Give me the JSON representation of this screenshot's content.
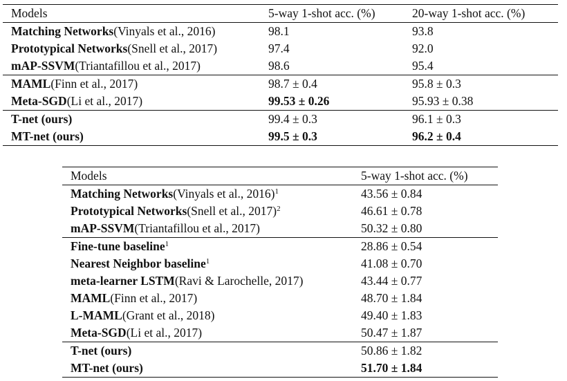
{
  "table1": {
    "headers": [
      "Models",
      "5-way 1-shot acc. (%)",
      "20-way 1-shot acc. (%)"
    ],
    "rows": [
      {
        "name": "Matching Networks",
        "cite": "(Vinyals et al., 2016)",
        "v1": "98.1",
        "v2": "93.8"
      },
      {
        "name": "Prototypical Networks",
        "cite": "(Snell et al., 2017)",
        "v1": "97.4",
        "v2": "92.0"
      },
      {
        "name": "mAP-SSVM",
        "cite": "(Triantafillou et al., 2017)",
        "v1": "98.6",
        "v2": "95.4"
      },
      {
        "name": "MAML",
        "cite": "(Finn et al., 2017)",
        "v1": "98.7 ± 0.4",
        "v2": "95.8 ± 0.3"
      },
      {
        "name": "Meta-SGD",
        "cite": "(Li et al., 2017)",
        "v1": "99.53 ± 0.26",
        "v2": "95.93 ± 0.38"
      },
      {
        "name": "T-net (ours)",
        "cite": "",
        "v1": "99.4 ± 0.3",
        "v2": "96.1 ± 0.3"
      },
      {
        "name": "MT-net (ours)",
        "cite": "",
        "v1": "99.5 ± 0.3",
        "v2": "96.2 ± 0.4"
      }
    ]
  },
  "table2": {
    "headers": [
      "Models",
      "5-way 1-shot acc. (%)"
    ],
    "rows": [
      {
        "name": "Matching Networks",
        "cite": "(Vinyals et al., 2016)",
        "sup": "1",
        "v1": "43.56 ± 0.84"
      },
      {
        "name": "Prototypical Networks",
        "cite": "(Snell et al., 2017)",
        "sup": "2",
        "v1": "46.61 ± 0.78"
      },
      {
        "name": "mAP-SSVM",
        "cite": "(Triantafillou et al., 2017)",
        "sup": "",
        "v1": "50.32 ± 0.80"
      },
      {
        "name": "Fine-tune baseline",
        "cite": "",
        "sup": "1",
        "v1": "28.86 ± 0.54"
      },
      {
        "name": "Nearest Neighbor baseline",
        "cite": "",
        "sup": "1",
        "v1": "41.08 ± 0.70"
      },
      {
        "name": "meta-learner LSTM",
        "cite": "(Ravi & Larochelle, 2017)",
        "sup": "",
        "v1": "43.44 ± 0.77"
      },
      {
        "name": "MAML",
        "cite": "(Finn et al., 2017)",
        "sup": "",
        "v1": "48.70 ± 1.84"
      },
      {
        "name": "L-MAML",
        "cite": "(Grant et al., 2018)",
        "sup": "",
        "v1": "49.40 ± 1.83"
      },
      {
        "name": "Meta-SGD",
        "cite": "(Li et al., 2017)",
        "sup": "",
        "v1": "50.47 ± 1.87"
      },
      {
        "name": "T-net (ours)",
        "cite": "",
        "sup": "",
        "v1": "50.86 ± 1.82"
      },
      {
        "name": "MT-net (ours)",
        "cite": "",
        "sup": "",
        "v1": "51.70 ± 1.84"
      }
    ]
  }
}
